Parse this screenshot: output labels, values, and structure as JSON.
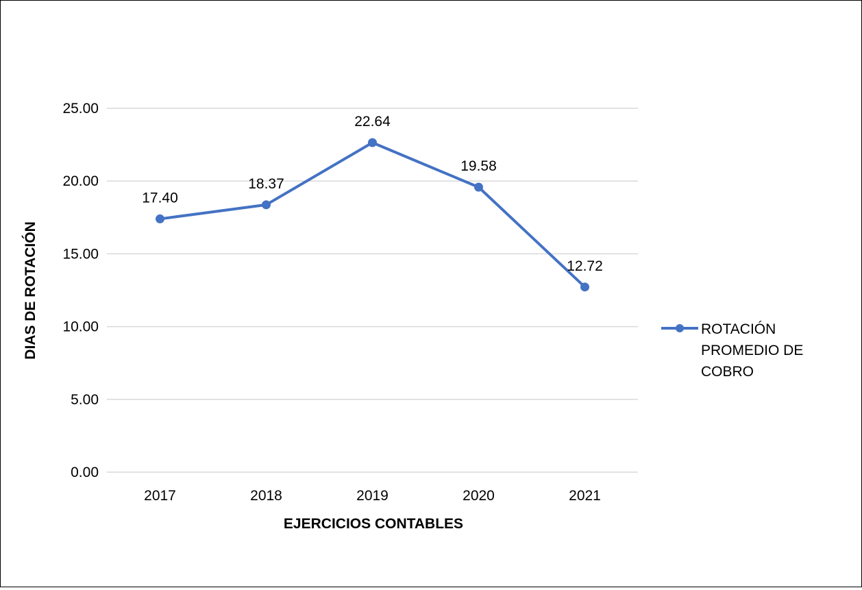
{
  "chart_data": {
    "type": "line",
    "title": "",
    "xlabel": "EJERCICIOS CONTABLES",
    "ylabel": "DIAS DE ROTACIÓN",
    "categories": [
      "2017",
      "2018",
      "2019",
      "2020",
      "2021"
    ],
    "series": [
      {
        "name": "ROTACIÓN PROMEDIO DE COBRO",
        "values": [
          17.4,
          18.37,
          22.64,
          19.58,
          12.72
        ],
        "data_labels": [
          "17.40",
          "18.37",
          "22.64",
          "19.58",
          "12.72"
        ],
        "color": "#4472C4"
      }
    ],
    "ylim": [
      0,
      25
    ],
    "yticks": [
      0,
      5,
      10,
      15,
      20,
      25
    ],
    "ytick_labels": [
      "0.00",
      "5.00",
      "10.00",
      "15.00",
      "20.00",
      "25.00"
    ],
    "grid": true,
    "legend_position": "right",
    "legend_lines": [
      "ROTACIÓN",
      "PROMEDIO DE",
      "COBRO"
    ],
    "colors": {
      "gridline": "#d9d9d9",
      "series": "#4472C4",
      "frame": "#000000"
    }
  }
}
